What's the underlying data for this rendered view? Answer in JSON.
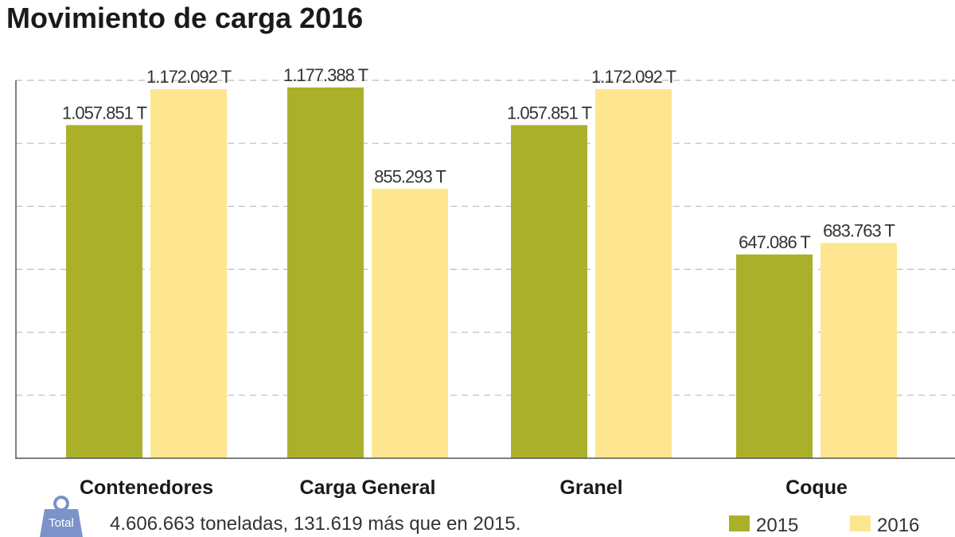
{
  "chart_data": {
    "type": "bar",
    "title": "Movimiento de carga 2016",
    "categories": [
      "Contenedores",
      "Carga General",
      "Granel",
      "Coque"
    ],
    "series": [
      {
        "name": "2015",
        "color": "#abb02b",
        "values": [
          1057851,
          1177388,
          1057851,
          647086
        ],
        "labels": [
          "1.057.851 T",
          "1.177.388 T",
          "1.057.851 T",
          "647.086 T"
        ]
      },
      {
        "name": "2016",
        "color": "#fde68f",
        "values": [
          1172092,
          855293,
          1172092,
          683763
        ],
        "labels": [
          "1.172.092 T",
          "855.293 T",
          "1.172.092 T",
          "683.763 T"
        ]
      }
    ],
    "xlabel": "",
    "ylabel": "",
    "ylim": [
      0,
      1200000
    ],
    "grid": true,
    "legend": "bottom-right"
  },
  "footer": {
    "icon": "weight-icon",
    "icon_label": "Total",
    "text": "4.606.663 toneladas, 131.619 más que en 2015."
  }
}
